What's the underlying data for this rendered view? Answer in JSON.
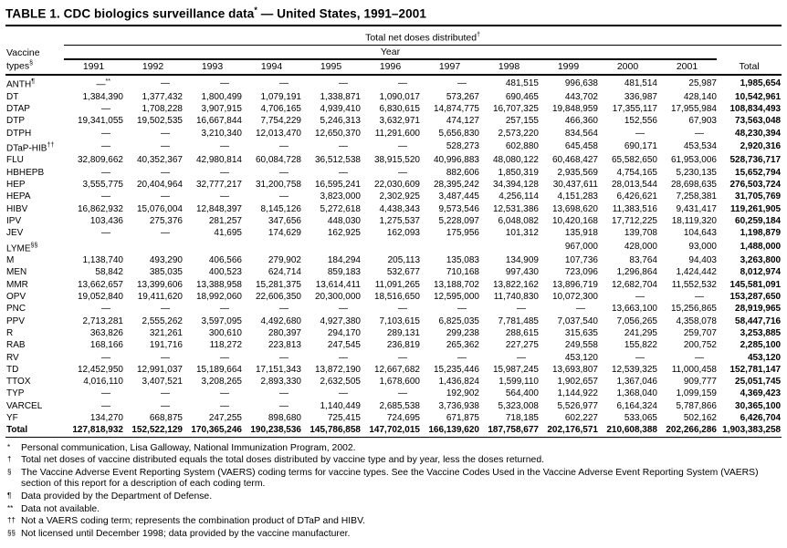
{
  "title": {
    "text": "TABLE 1. CDC biologics surveillance data",
    "sup": "*",
    "suffix": " — United States, 1991–2001"
  },
  "table": {
    "group_header": "Total net doses distributed",
    "group_header_sup": "†",
    "year_header": "Year",
    "vaccine_col": {
      "line1": "Vaccine",
      "line2": "types",
      "sup": "§"
    },
    "columns": [
      "1991",
      "1992",
      "1993",
      "1994",
      "1995",
      "1996",
      "1997",
      "1998",
      "1999",
      "2000",
      "2001",
      "Total"
    ],
    "rows": [
      {
        "label": "ANTH",
        "sup": "¶",
        "values": [
          {
            "v": "—",
            "sup": "**"
          },
          "—",
          "—",
          "—",
          "—",
          "—",
          "—",
          "481,515",
          "996,638",
          "481,514",
          "25,987",
          "1,985,654"
        ]
      },
      {
        "label": "DT",
        "values": [
          "1,384,390",
          "1,377,432",
          "1,800,499",
          "1,079,191",
          "1,338,871",
          "1,090,017",
          "573,267",
          "690,465",
          "443,702",
          "336,987",
          "428,140",
          "10,542,961"
        ]
      },
      {
        "label": "DTAP",
        "values": [
          "—",
          "1,708,228",
          "3,907,915",
          "4,706,165",
          "4,939,410",
          "6,830,615",
          "14,874,775",
          "16,707,325",
          "19,848,959",
          "17,355,117",
          "17,955,984",
          "108,834,493"
        ]
      },
      {
        "label": "DTP",
        "values": [
          "19,341,055",
          "19,502,535",
          "16,667,844",
          "7,754,229",
          "5,246,313",
          "3,632,971",
          "474,127",
          "257,155",
          "466,360",
          "152,556",
          "67,903",
          "73,563,048"
        ]
      },
      {
        "label": "DTPH",
        "values": [
          "—",
          "—",
          "3,210,340",
          "12,013,470",
          "12,650,370",
          "11,291,600",
          "5,656,830",
          "2,573,220",
          "834,564",
          "—",
          "—",
          "48,230,394"
        ]
      },
      {
        "label": "DTaP-HIB",
        "sup": "††",
        "values": [
          "—",
          "—",
          "—",
          "—",
          "—",
          "—",
          "528,273",
          "602,880",
          "645,458",
          "690,171",
          "453,534",
          "2,920,316"
        ]
      },
      {
        "label": "FLU",
        "values": [
          "32,809,662",
          "40,352,367",
          "42,980,814",
          "60,084,728",
          "36,512,538",
          "38,915,520",
          "40,996,883",
          "48,080,122",
          "60,468,427",
          "65,582,650",
          "61,953,006",
          "528,736,717"
        ]
      },
      {
        "label": "HBHEPB",
        "values": [
          "—",
          "—",
          "—",
          "—",
          "—",
          "—",
          "882,606",
          "1,850,319",
          "2,935,569",
          "4,754,165",
          "5,230,135",
          "15,652,794"
        ]
      },
      {
        "label": "HEP",
        "values": [
          "3,555,775",
          "20,404,964",
          "32,777,217",
          "31,200,758",
          "16,595,241",
          "22,030,609",
          "28,395,242",
          "34,394,128",
          "30,437,611",
          "28,013,544",
          "28,698,635",
          "276,503,724"
        ]
      },
      {
        "label": "HEPA",
        "values": [
          "—",
          "—",
          "—",
          "—",
          "3,823,000",
          "2,302,925",
          "3,487,445",
          "4,256,114",
          "4,151,283",
          "6,426,621",
          "7,258,381",
          "31,705,769"
        ]
      },
      {
        "label": "HIBV",
        "values": [
          "16,862,932",
          "15,076,004",
          "12,848,397",
          "8,145,126",
          "5,272,618",
          "4,438,343",
          "9,573,546",
          "12,531,386",
          "13,698,620",
          "11,383,516",
          "9,431,417",
          "119,261,905"
        ]
      },
      {
        "label": "IPV",
        "values": [
          "103,436",
          "275,376",
          "281,257",
          "347,656",
          "448,030",
          "1,275,537",
          "5,228,097",
          "6,048,082",
          "10,420,168",
          "17,712,225",
          "18,119,320",
          "60,259,184"
        ]
      },
      {
        "label": "JEV",
        "values": [
          "—",
          "—",
          "41,695",
          "174,629",
          "162,925",
          "162,093",
          "175,956",
          "101,312",
          "135,918",
          "139,708",
          "104,643",
          "1,198,879"
        ]
      },
      {
        "label": "LYME",
        "sup": "§§",
        "values": [
          "",
          "",
          "",
          "",
          "",
          "",
          "",
          "",
          "967,000",
          "428,000",
          "93,000",
          "1,488,000"
        ]
      },
      {
        "label": "M",
        "values": [
          "1,138,740",
          "493,290",
          "406,566",
          "279,902",
          "184,294",
          "205,113",
          "135,083",
          "134,909",
          "107,736",
          "83,764",
          "94,403",
          "3,263,800"
        ]
      },
      {
        "label": "MEN",
        "values": [
          "58,842",
          "385,035",
          "400,523",
          "624,714",
          "859,183",
          "532,677",
          "710,168",
          "997,430",
          "723,096",
          "1,296,864",
          "1,424,442",
          "8,012,974"
        ]
      },
      {
        "label": "MMR",
        "values": [
          "13,662,657",
          "13,399,606",
          "13,388,958",
          "15,281,375",
          "13,614,411",
          "11,091,265",
          "13,188,702",
          "13,822,162",
          "13,896,719",
          "12,682,704",
          "11,552,532",
          "145,581,091"
        ]
      },
      {
        "label": "OPV",
        "values": [
          "19,052,840",
          "19,411,620",
          "18,992,060",
          "22,606,350",
          "20,300,000",
          "18,516,650",
          "12,595,000",
          "11,740,830",
          "10,072,300",
          "—",
          "—",
          "153,287,650"
        ]
      },
      {
        "label": "PNC",
        "values": [
          "—",
          "—",
          "—",
          "—",
          "—",
          "—",
          "—",
          "—",
          "—",
          "13,663,100",
          "15,256,865",
          "28,919,965"
        ]
      },
      {
        "label": "PPV",
        "values": [
          "2,713,281",
          "2,555,262",
          "3,597,095",
          "4,492,680",
          "4,927,380",
          "7,103,615",
          "6,825,035",
          "7,781,485",
          "7,037,540",
          "7,056,265",
          "4,358,078",
          "58,447,716"
        ]
      },
      {
        "label": "R",
        "values": [
          "363,826",
          "321,261",
          "300,610",
          "280,397",
          "294,170",
          "289,131",
          "299,238",
          "288,615",
          "315,635",
          "241,295",
          "259,707",
          "3,253,885"
        ]
      },
      {
        "label": "RAB",
        "values": [
          "168,166",
          "191,716",
          "118,272",
          "223,813",
          "247,545",
          "236,819",
          "265,362",
          "227,275",
          "249,558",
          "155,822",
          "200,752",
          "2,285,100"
        ]
      },
      {
        "label": "RV",
        "values": [
          "—",
          "—",
          "—",
          "—",
          "—",
          "—",
          "—",
          "—",
          "453,120",
          "—",
          "—",
          "453,120"
        ]
      },
      {
        "label": "TD",
        "values": [
          "12,452,950",
          "12,991,037",
          "15,189,664",
          "17,151,343",
          "13,872,190",
          "12,667,682",
          "15,235,446",
          "15,987,245",
          "13,693,807",
          "12,539,325",
          "11,000,458",
          "152,781,147"
        ]
      },
      {
        "label": "TTOX",
        "values": [
          "4,016,110",
          "3,407,521",
          "3,208,265",
          "2,893,330",
          "2,632,505",
          "1,678,600",
          "1,436,824",
          "1,599,110",
          "1,902,657",
          "1,367,046",
          "909,777",
          "25,051,745"
        ]
      },
      {
        "label": "TYP",
        "values": [
          "—",
          "—",
          "—",
          "—",
          "—",
          "—",
          "192,902",
          "564,400",
          "1,144,922",
          "1,368,040",
          "1,099,159",
          "4,369,423"
        ]
      },
      {
        "label": "VARCEL",
        "values": [
          "—",
          "—",
          "—",
          "—",
          "1,140,449",
          "2,685,538",
          "3,736,938",
          "5,323,008",
          "5,526,977",
          "6,164,324",
          "5,787,866",
          "30,365,100"
        ]
      },
      {
        "label": "YF",
        "values": [
          "134,270",
          "668,875",
          "247,255",
          "898,680",
          "725,415",
          "724,695",
          "671,875",
          "718,185",
          "602,227",
          "533,065",
          "502,162",
          "6,426,704"
        ]
      }
    ],
    "total_row": {
      "label": "Total",
      "values": [
        "127,818,932",
        "152,522,129",
        "170,365,246",
        "190,238,536",
        "145,786,858",
        "147,702,015",
        "166,139,620",
        "187,758,677",
        "202,176,571",
        "210,608,388",
        "202,266,286",
        "1,903,383,258"
      ]
    }
  },
  "footnotes": [
    {
      "marker": "*",
      "text": "Personal communication, Lisa Galloway, National Immunization Program, 2002."
    },
    {
      "marker": "†",
      "text": "Total net doses of vaccine distributed equals the total doses distributed by vaccine type and by year, less the doses returned."
    },
    {
      "marker": "§",
      "text": "The Vaccine Adverse Event Reporting System (VAERS) coding terms for vaccine types. See the Vaccine Codes Used in the Vaccine Adverse Event Reporting System (VAERS) section of this report for a description of each coding term."
    },
    {
      "marker": "¶",
      "text": "Data provided by the Department of Defense."
    },
    {
      "marker": "**",
      "text": "Data not available."
    },
    {
      "marker": "††",
      "text": "Not a VAERS coding term; represents the combination product of DTaP and HIBV."
    },
    {
      "marker": "§§",
      "text": "Not licensed until December 1998; data provided by the vaccine manufacturer."
    }
  ]
}
